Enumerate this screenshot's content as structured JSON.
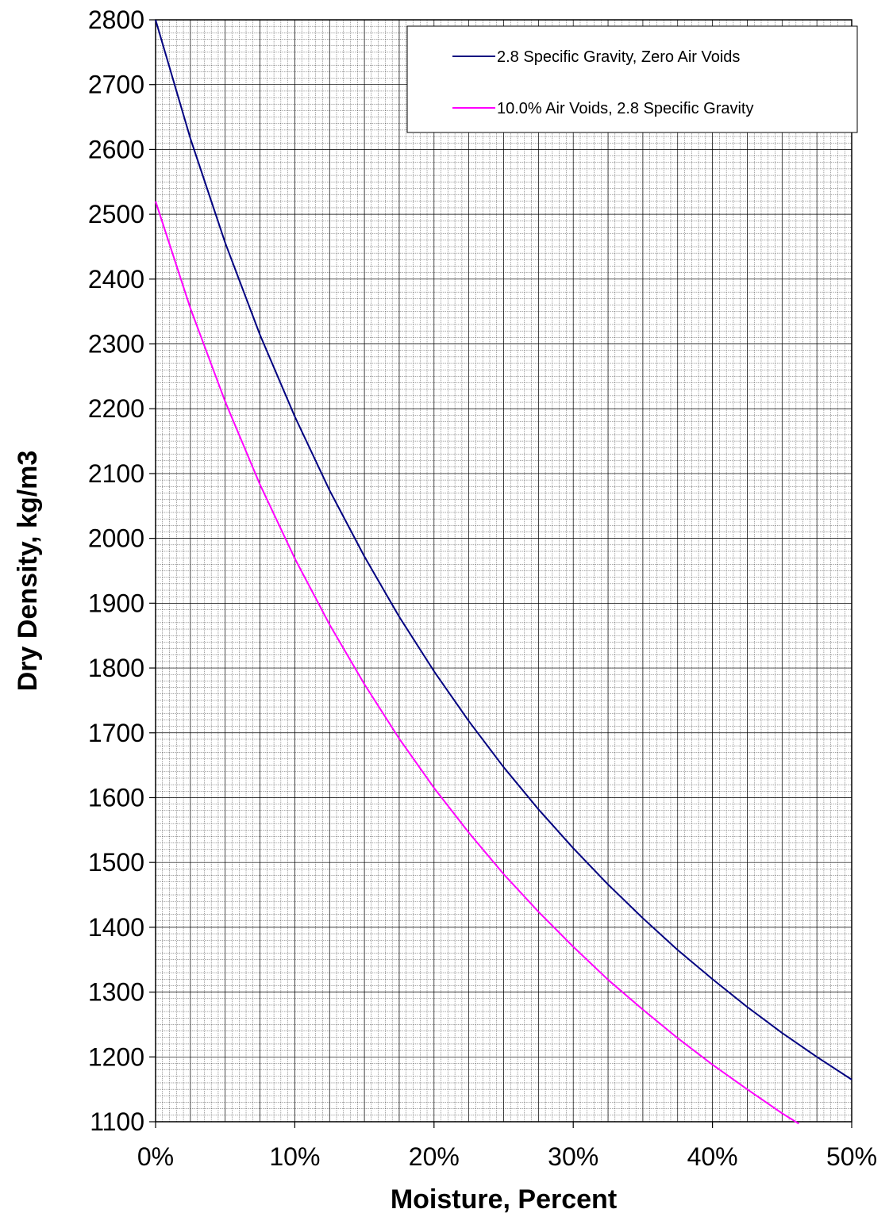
{
  "chart_data": {
    "type": "line",
    "title": "",
    "xlabel": "Moisture, Percent",
    "ylabel": "Dry Density, kg/m3",
    "xlim": [
      0,
      50
    ],
    "ylim": [
      1100,
      2800
    ],
    "x_ticks": [
      0,
      10,
      20,
      30,
      40,
      50
    ],
    "x_tick_labels": [
      "0%",
      "10%",
      "20%",
      "30%",
      "40%",
      "50%"
    ],
    "y_ticks": [
      1100,
      1200,
      1300,
      1400,
      1500,
      1600,
      1700,
      1800,
      1900,
      2000,
      2100,
      2200,
      2300,
      2400,
      2500,
      2600,
      2700,
      2800
    ],
    "y_tick_labels": [
      "1100",
      "1200",
      "1300",
      "1400",
      "1500",
      "1600",
      "1700",
      "1800",
      "1900",
      "2000",
      "2100",
      "2200",
      "2300",
      "2400",
      "2500",
      "2600",
      "2700",
      "2800"
    ],
    "grid": true,
    "legend_position": "top-right",
    "series": [
      {
        "name": "2.8 Specific Gravity, Zero Air Voids",
        "color": "#000080",
        "x": [
          0,
          2.5,
          5,
          7.5,
          10,
          12.5,
          15,
          17.5,
          20,
          22.5,
          25,
          27.5,
          30,
          32.5,
          35,
          37.5,
          40,
          42.5,
          45,
          47.5,
          50
        ],
        "values": [
          2800,
          2617,
          2456,
          2314,
          2188,
          2074,
          1972,
          1879,
          1795,
          1718,
          1647,
          1582,
          1522,
          1466,
          1414,
          1365,
          1320,
          1277,
          1237,
          1200,
          1165
        ]
      },
      {
        "name": "10.0% Air Voids, 2.8 Specific Gravity",
        "color": "#FF00FF",
        "x": [
          0,
          2.5,
          5,
          7.5,
          10,
          12.5,
          15,
          17.5,
          20,
          22.5,
          25,
          27.5,
          30,
          32.5,
          35,
          37.5,
          40,
          42.5,
          45,
          46.2
        ],
        "values": [
          2520,
          2355,
          2211,
          2083,
          1969,
          1867,
          1775,
          1691,
          1615,
          1546,
          1482,
          1424,
          1370,
          1319,
          1273,
          1229,
          1188,
          1150,
          1113,
          1097
        ]
      }
    ]
  }
}
